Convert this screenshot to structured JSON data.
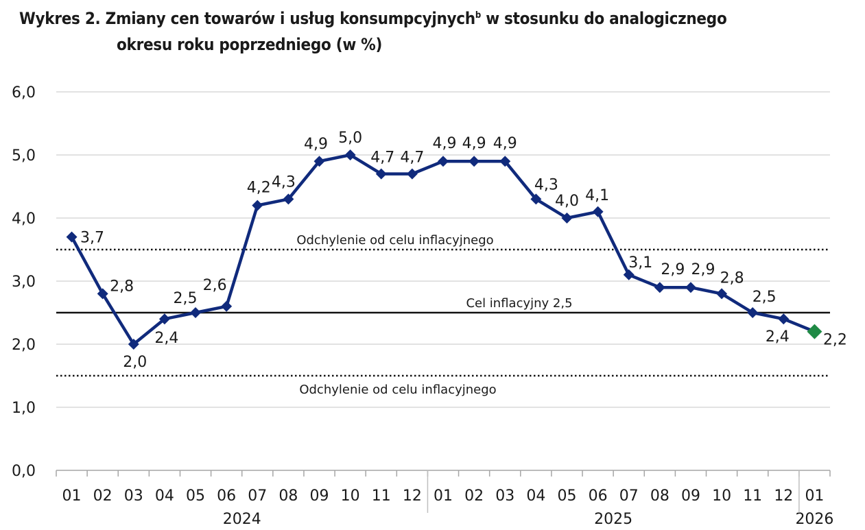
{
  "chart_data": {
    "type": "line",
    "title": "Wykres 2. Zmiany cen towarów i usług konsumpcyjnych",
    "title_superscript": "b",
    "title_line2": "w stosunku do analogicznego",
    "title_line3": "okresu roku poprzedniego (w %)",
    "xlabel": "",
    "ylabel": "",
    "ylim": [
      0,
      6
    ],
    "yticks": [
      "0,0",
      "1,0",
      "2,0",
      "3,0",
      "4,0",
      "5,0",
      "6,0"
    ],
    "grid": true,
    "categories": [
      "01",
      "02",
      "03",
      "04",
      "05",
      "06",
      "07",
      "08",
      "09",
      "10",
      "11",
      "12",
      "01",
      "02",
      "03",
      "04",
      "05",
      "06",
      "07",
      "08",
      "09",
      "10",
      "11",
      "12",
      "01"
    ],
    "years": [
      {
        "label": "2024",
        "start": 0,
        "end": 11
      },
      {
        "label": "2025",
        "start": 12,
        "end": 23
      },
      {
        "label": "2026",
        "start": 24,
        "end": 24
      }
    ],
    "series": [
      {
        "values": [
          3.7,
          2.8,
          2.0,
          2.4,
          2.5,
          2.6,
          4.2,
          4.3,
          4.9,
          5.0,
          4.7,
          4.7,
          4.9,
          4.9,
          4.9,
          4.3,
          4.0,
          4.1,
          3.1,
          2.9,
          2.9,
          2.8,
          2.5,
          2.4,
          2.2
        ],
        "labels": [
          "3,7",
          "2,8",
          "2,0",
          "2,4",
          "2,5",
          "2,6",
          "4,2",
          "4,3",
          "4,9",
          "5,0",
          "4,7",
          "4,7",
          "4,9",
          "4,9",
          "4,9",
          "4,3",
          "4,0",
          "4,1",
          "3,1",
          "2,9",
          "2,9",
          "2,8",
          "2,5",
          "2,4",
          "2,2"
        ],
        "color": "#102a7c",
        "last_point_color": "#1f8a45"
      }
    ],
    "reference_lines": [
      {
        "value": 2.5,
        "label": "Cel inflacyjny 2,5",
        "style": "solid"
      },
      {
        "value": 3.5,
        "label": "Odchylenie od celu inflacyjnego",
        "style": "dotted"
      },
      {
        "value": 1.5,
        "label": "Odchylenie od celu inflacyjnego",
        "style": "dotted"
      }
    ]
  }
}
